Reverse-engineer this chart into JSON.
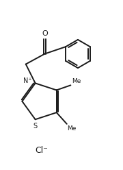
{
  "bg_color": "#ffffff",
  "line_color": "#1a1a1a",
  "line_width": 1.4,
  "figsize": [
    1.8,
    2.48
  ],
  "dpi": 100,
  "cl_label": "Cl⁻",
  "o_label": "O",
  "s_label": "S",
  "nplus_label": "N⁺"
}
